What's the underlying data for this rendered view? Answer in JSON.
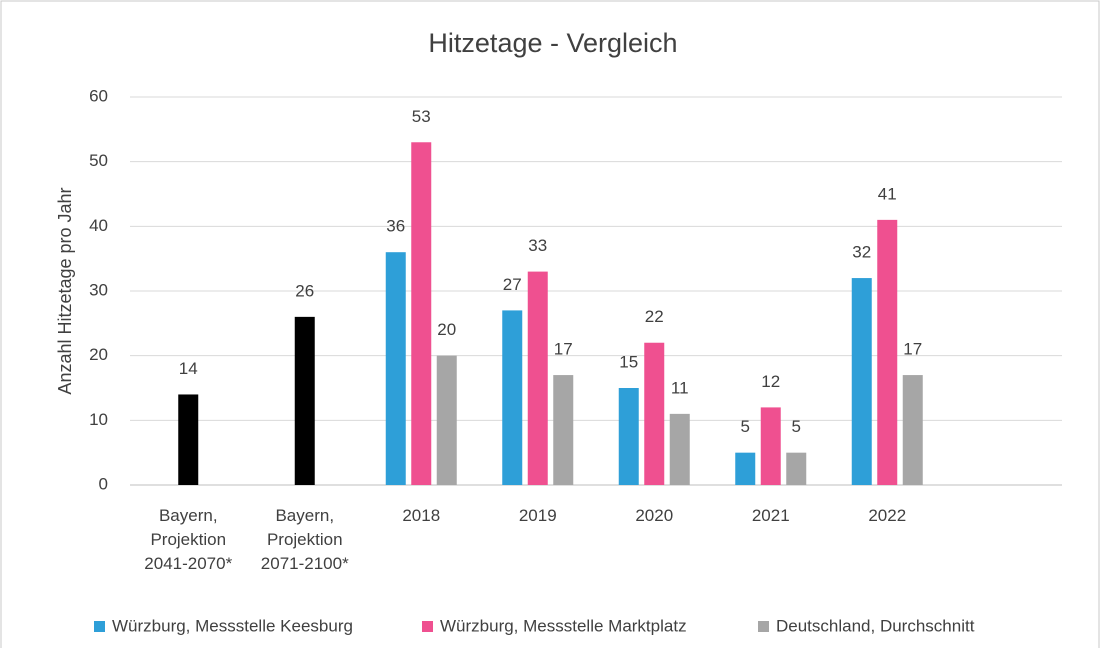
{
  "chart_data": {
    "type": "bar",
    "title": "Hitzetage - Vergleich",
    "y_label": "Anzahl Hitzetage pro Jahr",
    "categories": [
      "Bayern,\nProjektion\n2041-2070*",
      "Bayern,\nProjektion\n2071-2100*",
      "2018",
      "2019",
      "2020",
      "2021",
      "2022",
      null
    ],
    "series": [
      {
        "name": "Würzburg, Messstelle Keesburg",
        "color": "#2e9fd8",
        "values": [
          null,
          null,
          36,
          27,
          15,
          5,
          32,
          null
        ]
      },
      {
        "name": "Würzburg, Messstelle Marktplatz",
        "color": "#ef5090",
        "point_colors": [
          "#000000",
          "#000000",
          null,
          null,
          null,
          null,
          null,
          null
        ],
        "values": [
          14,
          26,
          53,
          33,
          22,
          12,
          41,
          null
        ]
      },
      {
        "name": "Deutschland, Durchschnitt",
        "color": "#a6a6a6",
        "values": [
          null,
          null,
          20,
          17,
          11,
          5,
          17,
          null
        ]
      }
    ],
    "ylim": [
      0,
      60
    ],
    "yticks": [
      0,
      10,
      20,
      30,
      40,
      50,
      60
    ],
    "grid": true,
    "legend": "bottom"
  }
}
